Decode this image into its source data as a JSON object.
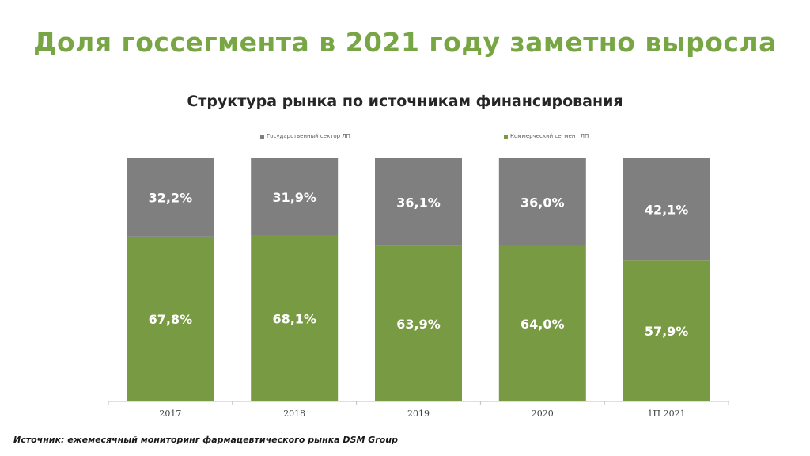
{
  "headline": "Доля госсегмента в 2021 году заметно выросла",
  "source": "Источник: ежемесячный мониторинг фармацевтического рынка DSM Group",
  "colors": {
    "headline": "#78a645",
    "government": "#7f7f7f",
    "commercial": "#779a42"
  },
  "chart_data": {
    "type": "bar",
    "stacked": true,
    "title": "Структура рынка по источникам финансирования",
    "categories": [
      "2017",
      "2018",
      "2019",
      "2020",
      "1П 2021"
    ],
    "series": [
      {
        "name": "Коммерческий сегмент ЛП",
        "values": [
          67.8,
          68.1,
          63.9,
          64.0,
          57.9
        ],
        "labels": [
          "67,8%",
          "68,1%",
          "63,9%",
          "64,0%",
          "57,9%"
        ],
        "color": "#779a42"
      },
      {
        "name": "Государственный сектор ЛП",
        "values": [
          32.2,
          31.9,
          36.1,
          36.0,
          42.1
        ],
        "labels": [
          "32,2%",
          "31,9%",
          "36,1%",
          "36,0%",
          "42,1%"
        ],
        "color": "#7f7f7f"
      }
    ],
    "ylim": [
      0,
      100
    ],
    "legend": "top",
    "grid": false
  }
}
